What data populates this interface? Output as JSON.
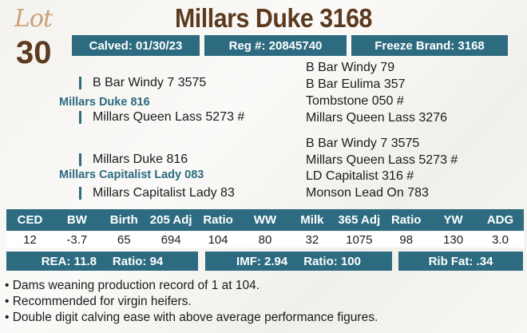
{
  "lot": {
    "word": "Lot",
    "number": "30"
  },
  "title": "Millars Duke 3168",
  "info": {
    "calved": "Calved: 01/30/23",
    "reg": "Reg #: 20845740",
    "freeze_brand": "Freeze Brand: 3168"
  },
  "pedigree": {
    "sire": "Millars Duke 816",
    "sire_sire": "B Bar Windy 7 3575",
    "sire_dam": "Millars Queen Lass 5273 #",
    "sire_sire_sire": "B Bar Windy 79",
    "sire_sire_dam": "B Bar Eulima 357",
    "sire_dam_sire": "Tombstone 050 #",
    "sire_dam_dam": "Millars Queen Lass 3276",
    "dam": "Millars Capitalist Lady 083",
    "dam_sire": "Millars Duke 816",
    "dam_dam": "Millars Capitalist Lady 83",
    "dam_sire_sire": "B Bar Windy 7 3575",
    "dam_sire_dam": "Millars Queen Lass 5273 #",
    "dam_dam_sire": "LD Capitalist 316 #",
    "dam_dam_dam": "Monson Lead On 783"
  },
  "epd": {
    "headers": [
      "CED",
      "BW",
      "Birth",
      "205 Adj",
      "Ratio",
      "WW",
      "Milk",
      "365 Adj",
      "Ratio",
      "YW",
      "ADG"
    ],
    "values": [
      "12",
      "-3.7",
      "65",
      "694",
      "104",
      "80",
      "32",
      "1075",
      "98",
      "130",
      "3.0"
    ]
  },
  "carcass": {
    "rea": "REA: 11.8",
    "rea_ratio": "Ratio: 94",
    "imf": "IMF: 2.94",
    "imf_ratio": "Ratio: 100",
    "rib_fat": "Rib Fat: .34"
  },
  "notes": [
    "• Dams weaning production record of 1 at 104.",
    "• Recommended for virgin heifers.",
    "• Double digit calving ease with above average performance figures."
  ],
  "colors": {
    "teal": "#2c6b80",
    "brown": "#5b3a1f",
    "tan": "#c9a07a"
  }
}
